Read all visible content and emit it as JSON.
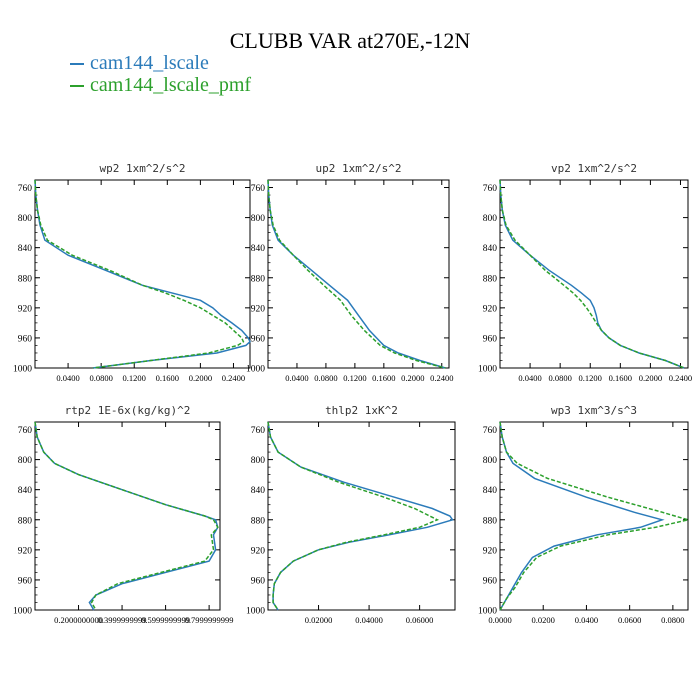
{
  "title": "CLUBB VAR at270E,-12N",
  "legend": [
    {
      "label": "cam144_lscale",
      "color": "#2b7bba"
    },
    {
      "label": "cam144_lscale_pmf",
      "color": "#2ca02c"
    }
  ],
  "chart_data": [
    {
      "type": "line",
      "title": "wp2  1xm^2/s^2",
      "xticks": [
        0.04,
        0.08,
        0.12,
        0.16,
        0.2,
        0.24
      ],
      "xtick_labels": [
        "0.0400",
        "0.0800",
        "0.1200",
        "0.1600",
        "0.2000",
        "0.2400"
      ],
      "xlim": [
        0.0,
        0.26
      ],
      "ylim": [
        1000,
        750
      ],
      "yticks": [
        760,
        800,
        840,
        880,
        920,
        960,
        1000
      ],
      "series": [
        {
          "name": "cam144_lscale",
          "color": "#2b7bba",
          "dash": false,
          "p": [
            750,
            770,
            790,
            810,
            830,
            850,
            870,
            890,
            900,
            910,
            920,
            930,
            940,
            950,
            960,
            965,
            970,
            980,
            990,
            1000
          ],
          "v": [
            0.0,
            0.001,
            0.003,
            0.006,
            0.012,
            0.04,
            0.085,
            0.13,
            0.165,
            0.2,
            0.215,
            0.225,
            0.238,
            0.25,
            0.258,
            0.26,
            0.255,
            0.22,
            0.14,
            0.07
          ]
        },
        {
          "name": "cam144_lscale_pmf",
          "color": "#2ca02c",
          "dash": true,
          "p": [
            750,
            770,
            790,
            810,
            830,
            850,
            870,
            890,
            900,
            910,
            920,
            930,
            940,
            950,
            960,
            965,
            970,
            980,
            990,
            1000
          ],
          "v": [
            0.0,
            0.001,
            0.003,
            0.007,
            0.015,
            0.045,
            0.09,
            0.13,
            0.157,
            0.18,
            0.2,
            0.215,
            0.23,
            0.24,
            0.25,
            0.252,
            0.245,
            0.21,
            0.14,
            0.07
          ]
        }
      ]
    },
    {
      "type": "line",
      "title": "up2  1xm^2/s^2",
      "xticks": [
        0.04,
        0.08,
        0.12,
        0.16,
        0.2,
        0.24
      ],
      "xtick_labels": [
        "0.0400",
        "0.0800",
        "0.1200",
        "0.1600",
        "0.2000",
        "0.2400"
      ],
      "xlim": [
        0.0,
        0.25
      ],
      "ylim": [
        1000,
        750
      ],
      "yticks": [
        760,
        800,
        840,
        880,
        920,
        960,
        1000
      ],
      "series": [
        {
          "name": "cam144_lscale",
          "color": "#2b7bba",
          "dash": false,
          "p": [
            750,
            770,
            790,
            810,
            830,
            850,
            870,
            890,
            910,
            930,
            950,
            970,
            980,
            990,
            1000
          ],
          "v": [
            0.0,
            0.001,
            0.003,
            0.006,
            0.014,
            0.035,
            0.06,
            0.085,
            0.11,
            0.125,
            0.14,
            0.16,
            0.18,
            0.21,
            0.245
          ]
        },
        {
          "name": "cam144_lscale_pmf",
          "color": "#2ca02c",
          "dash": true,
          "p": [
            750,
            770,
            790,
            810,
            830,
            850,
            870,
            890,
            910,
            930,
            950,
            970,
            980,
            990,
            1000
          ],
          "v": [
            0.0,
            0.001,
            0.003,
            0.007,
            0.016,
            0.035,
            0.055,
            0.077,
            0.1,
            0.115,
            0.133,
            0.155,
            0.175,
            0.205,
            0.245
          ]
        }
      ]
    },
    {
      "type": "line",
      "title": "vp2  1xm^2/s^2",
      "xticks": [
        0.04,
        0.08,
        0.12,
        0.16,
        0.2,
        0.24
      ],
      "xtick_labels": [
        "0.0400",
        "0.0800",
        "0.1200",
        "0.1600",
        "0.2000",
        "0.2400"
      ],
      "xlim": [
        0.0,
        0.25
      ],
      "ylim": [
        1000,
        750
      ],
      "yticks": [
        760,
        800,
        840,
        880,
        920,
        960,
        1000
      ],
      "series": [
        {
          "name": "cam144_lscale",
          "color": "#2b7bba",
          "dash": false,
          "p": [
            750,
            770,
            790,
            810,
            830,
            850,
            870,
            890,
            900,
            910,
            920,
            930,
            940,
            950,
            960,
            970,
            980,
            990,
            1000
          ],
          "v": [
            0.0,
            0.001,
            0.003,
            0.007,
            0.017,
            0.04,
            0.065,
            0.095,
            0.108,
            0.12,
            0.125,
            0.128,
            0.13,
            0.135,
            0.145,
            0.16,
            0.185,
            0.22,
            0.245
          ]
        },
        {
          "name": "cam144_lscale_pmf",
          "color": "#2ca02c",
          "dash": true,
          "p": [
            750,
            770,
            790,
            810,
            830,
            850,
            870,
            890,
            900,
            910,
            920,
            930,
            940,
            950,
            960,
            970,
            980,
            990,
            1000
          ],
          "v": [
            0.0,
            0.001,
            0.003,
            0.008,
            0.02,
            0.04,
            0.06,
            0.085,
            0.097,
            0.107,
            0.115,
            0.122,
            0.128,
            0.135,
            0.145,
            0.16,
            0.185,
            0.22,
            0.245
          ]
        }
      ]
    },
    {
      "type": "line",
      "title": "rtp2  1E-6x(kg/kg)^2",
      "xticks": [
        0.2,
        0.4,
        0.6,
        0.8
      ],
      "xtick_labels": [
        "0.2000000000",
        "0.3999999999",
        "0.5999999999",
        "0.7999999999"
      ],
      "xlim": [
        0.0,
        0.85
      ],
      "ylim": [
        1000,
        750
      ],
      "yticks": [
        760,
        800,
        840,
        880,
        920,
        960,
        1000
      ],
      "series": [
        {
          "name": "cam144_lscale",
          "color": "#2b7bba",
          "dash": false,
          "p": [
            750,
            770,
            790,
            805,
            820,
            840,
            860,
            875,
            880,
            890,
            900,
            920,
            935,
            950,
            965,
            980,
            990,
            1000
          ],
          "v": [
            0.0,
            0.01,
            0.04,
            0.09,
            0.2,
            0.4,
            0.6,
            0.78,
            0.83,
            0.84,
            0.82,
            0.83,
            0.8,
            0.6,
            0.4,
            0.28,
            0.25,
            0.27
          ]
        },
        {
          "name": "cam144_lscale_pmf",
          "color": "#2ca02c",
          "dash": true,
          "p": [
            750,
            770,
            790,
            805,
            820,
            840,
            860,
            875,
            880,
            890,
            900,
            920,
            935,
            950,
            965,
            980,
            990,
            1000
          ],
          "v": [
            0.0,
            0.01,
            0.04,
            0.09,
            0.2,
            0.4,
            0.6,
            0.78,
            0.82,
            0.84,
            0.81,
            0.82,
            0.78,
            0.58,
            0.38,
            0.28,
            0.26,
            0.28
          ]
        }
      ]
    },
    {
      "type": "line",
      "title": "thlp2  1xK^2",
      "xticks": [
        0.02,
        0.04,
        0.06
      ],
      "xtick_labels": [
        "0.02000",
        "0.04000",
        "0.06000"
      ],
      "xlim": [
        0.0,
        0.074
      ],
      "ylim": [
        1000,
        750
      ],
      "yticks": [
        760,
        800,
        840,
        880,
        920,
        960,
        1000
      ],
      "series": [
        {
          "name": "cam144_lscale",
          "color": "#2b7bba",
          "dash": false,
          "p": [
            750,
            770,
            790,
            810,
            830,
            850,
            865,
            875,
            880,
            890,
            900,
            910,
            920,
            935,
            950,
            965,
            980,
            990,
            1000
          ],
          "v": [
            0.0,
            0.001,
            0.004,
            0.013,
            0.03,
            0.05,
            0.065,
            0.072,
            0.073,
            0.063,
            0.048,
            0.032,
            0.02,
            0.01,
            0.005,
            0.0025,
            0.002,
            0.002,
            0.004
          ]
        },
        {
          "name": "cam144_lscale_pmf",
          "color": "#2ca02c",
          "dash": true,
          "p": [
            750,
            770,
            790,
            810,
            830,
            850,
            865,
            875,
            880,
            890,
            900,
            910,
            920,
            935,
            950,
            965,
            980,
            990,
            1000
          ],
          "v": [
            0.0,
            0.001,
            0.004,
            0.013,
            0.028,
            0.046,
            0.058,
            0.064,
            0.067,
            0.06,
            0.046,
            0.031,
            0.02,
            0.01,
            0.005,
            0.0025,
            0.002,
            0.002,
            0.004
          ]
        }
      ]
    },
    {
      "type": "line",
      "title": "wp3  1xm^3/s^3",
      "xticks": [
        0.0,
        0.02,
        0.04,
        0.06,
        0.08
      ],
      "xtick_labels": [
        "0.0000",
        "0.0200",
        "0.0400",
        "0.0600",
        "0.0800"
      ],
      "xlim": [
        0.0,
        0.087
      ],
      "ylim": [
        1000,
        750
      ],
      "yticks": [
        760,
        800,
        840,
        880,
        920,
        960,
        1000
      ],
      "series": [
        {
          "name": "cam144_lscale",
          "color": "#2b7bba",
          "dash": false,
          "p": [
            750,
            770,
            790,
            805,
            825,
            850,
            870,
            880,
            890,
            900,
            915,
            930,
            950,
            970,
            985,
            1000
          ],
          "v": [
            0.0,
            0.001,
            0.003,
            0.006,
            0.016,
            0.04,
            0.062,
            0.075,
            0.065,
            0.045,
            0.025,
            0.015,
            0.01,
            0.006,
            0.003,
            0.0
          ]
        },
        {
          "name": "cam144_lscale_pmf",
          "color": "#2ca02c",
          "dash": true,
          "p": [
            750,
            770,
            790,
            805,
            825,
            850,
            870,
            880,
            890,
            900,
            915,
            930,
            950,
            970,
            985,
            1000
          ],
          "v": [
            0.0,
            0.001,
            0.003,
            0.008,
            0.022,
            0.05,
            0.075,
            0.087,
            0.072,
            0.05,
            0.028,
            0.017,
            0.011,
            0.007,
            0.003,
            0.0
          ]
        }
      ]
    }
  ]
}
